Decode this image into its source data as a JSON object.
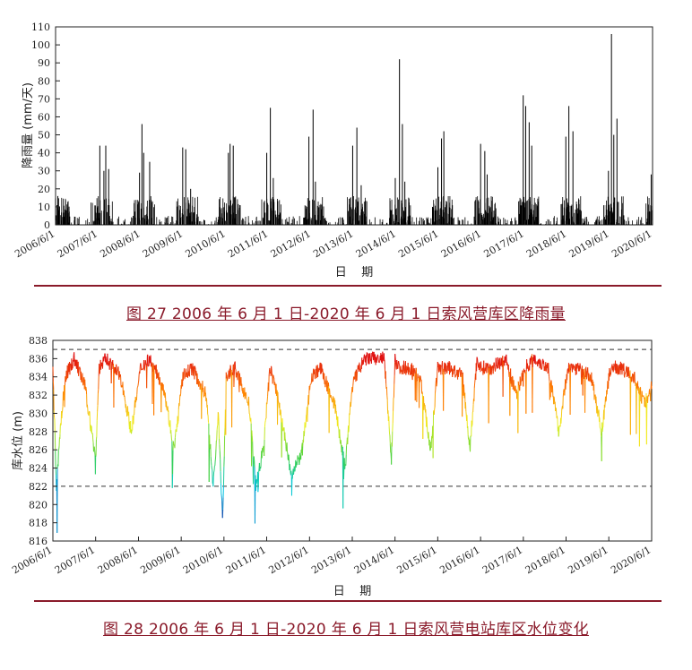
{
  "figure1": {
    "caption": "图 27 2006 年 6 月 1 日-2020 年 6 月 1 日索风营库区降雨量",
    "chart_data": {
      "type": "bar",
      "title": "",
      "xlabel": "日    期",
      "ylabel": "降雨量 (mm/天)",
      "ylim": [
        0,
        110
      ],
      "yticks": [
        0,
        10,
        20,
        30,
        40,
        50,
        60,
        70,
        80,
        90,
        100,
        110
      ],
      "xticks": [
        "2006/6/1",
        "2007/6/1",
        "2008/6/1",
        "2009/6/1",
        "2010/6/1",
        "2011/6/1",
        "2012/6/1",
        "2013/6/1",
        "2014/6/1",
        "2015/6/1",
        "2016/6/1",
        "2017/6/1",
        "2018/6/1",
        "2019/6/1",
        "2020/6/1"
      ],
      "xlim": [
        "2006/6/1",
        "2020/6/1"
      ],
      "grid": false,
      "series": [
        {
          "dates": [
            "2006/6/20",
            "2006/7/5",
            "2007/6/15",
            "2007/7/20",
            "2007/8/5",
            "2007/8/30",
            "2008/5/20",
            "2008/6/10",
            "2008/6/25",
            "2008/8/15",
            "2009/5/25",
            "2009/6/20",
            "2009/8/1",
            "2010/6/20",
            "2010/7/5",
            "2010/8/1",
            "2011/5/15",
            "2011/6/15",
            "2011/7/10",
            "2012/5/10",
            "2012/6/15",
            "2012/7/5",
            "2013/5/20",
            "2013/6/25",
            "2013/8/1",
            "2014/5/20",
            "2014/6/25",
            "2014/7/20",
            "2014/8/10",
            "2015/5/20",
            "2015/6/20",
            "2015/7/10",
            "2016/5/20",
            "2016/6/25",
            "2016/7/15",
            "2017/5/20",
            "2017/6/10",
            "2017/7/10",
            "2017/8/1",
            "2018/5/20",
            "2018/6/15",
            "2018/7/20",
            "2019/5/20",
            "2019/6/15",
            "2019/7/5",
            "2019/8/1",
            "2020/5/20"
          ],
          "values": [
            16,
            10,
            44,
            30,
            44,
            31,
            29,
            56,
            40,
            35,
            43,
            42,
            20,
            40,
            45,
            44,
            40,
            65,
            26,
            49,
            64,
            24,
            44,
            54,
            22,
            26,
            92,
            56,
            24,
            32,
            48,
            52,
            45,
            41,
            28,
            72,
            66,
            57,
            44,
            49,
            66,
            52,
            30,
            106,
            50,
            59,
            28
          ]
        }
      ]
    }
  },
  "figure2": {
    "caption": "图 28 2006 年 6 月 1 日-2020 年 6 月 1 日索风营电站库区水位变化",
    "chart_data": {
      "type": "line",
      "title": "",
      "xlabel": "日    期",
      "ylabel": "库水位 (m)",
      "ylim": [
        816,
        838
      ],
      "yticks": [
        816,
        818,
        820,
        822,
        824,
        826,
        828,
        830,
        832,
        834,
        836,
        838
      ],
      "xticks": [
        "2006/6/1",
        "2007/6/1",
        "2008/6/1",
        "2009/6/1",
        "2010/6/1",
        "2011/6/1",
        "2012/6/1",
        "2013/6/1",
        "2014/6/1",
        "2015/6/1",
        "2016/6/1",
        "2017/6/1",
        "2018/6/1",
        "2019/6/1",
        "2020/6/1"
      ],
      "xlim": [
        "2006/6/1",
        "2020/6/1"
      ],
      "reference_lines": [
        837,
        822
      ],
      "color_scale": [
        "#1a2aa0",
        "#00c8e6",
        "#40d040",
        "#f0f020",
        "#ff8000",
        "#e01010"
      ],
      "series": [
        {
          "dates": [
            "2006/6/1",
            "2006/7/1",
            "2006/8/1",
            "2006/9/15",
            "2006/12/1",
            "2007/3/1",
            "2007/6/1",
            "2007/7/1",
            "2007/9/1",
            "2008/1/1",
            "2008/4/1",
            "2008/6/20",
            "2008/9/1",
            "2009/1/1",
            "2009/4/1",
            "2009/6/15",
            "2009/9/1",
            "2010/1/1",
            "2010/3/1",
            "2010/4/15",
            "2010/5/20",
            "2010/6/20",
            "2010/9/1",
            "2011/1/1",
            "2011/3/1",
            "2011/5/1",
            "2011/7/1",
            "2011/9/1",
            "2012/1/1",
            "2012/4/1",
            "2012/6/15",
            "2012/9/1",
            "2013/1/1",
            "2013/4/1",
            "2013/6/1",
            "2013/8/1",
            "2013/10/1",
            "2014/1/1",
            "2014/3/1",
            "2014/5/1",
            "2014/6/1",
            "2014/7/1",
            "2014/10/1",
            "2015/1/1",
            "2015/4/1",
            "2015/6/1",
            "2015/9/1",
            "2016/1/1",
            "2016/3/1",
            "2016/5/1",
            "2016/6/1",
            "2016/9/1",
            "2017/1/1",
            "2017/4/1",
            "2017/6/15",
            "2017/9/1",
            "2018/1/1",
            "2018/4/1",
            "2018/6/15",
            "2018/9/1",
            "2019/1/1",
            "2019/4/1",
            "2019/6/15",
            "2019/9/1",
            "2020/1/1",
            "2020/4/1",
            "2020/6/1"
          ],
          "values": [
            835,
            822,
            828,
            834,
            836,
            833,
            825,
            835,
            836,
            834,
            828,
            835,
            836,
            833,
            826,
            834,
            835,
            832,
            822,
            830,
            818,
            834,
            835,
            831,
            822,
            826,
            835,
            832,
            823,
            826,
            834,
            835,
            831,
            824,
            833,
            835,
            836,
            836,
            836,
            825,
            836,
            835,
            835,
            834,
            826,
            835,
            835,
            834,
            826,
            836,
            835,
            835,
            836,
            832,
            835,
            836,
            835,
            828,
            835,
            835,
            834,
            828,
            835,
            835,
            834,
            831,
            833
          ]
        }
      ]
    }
  }
}
